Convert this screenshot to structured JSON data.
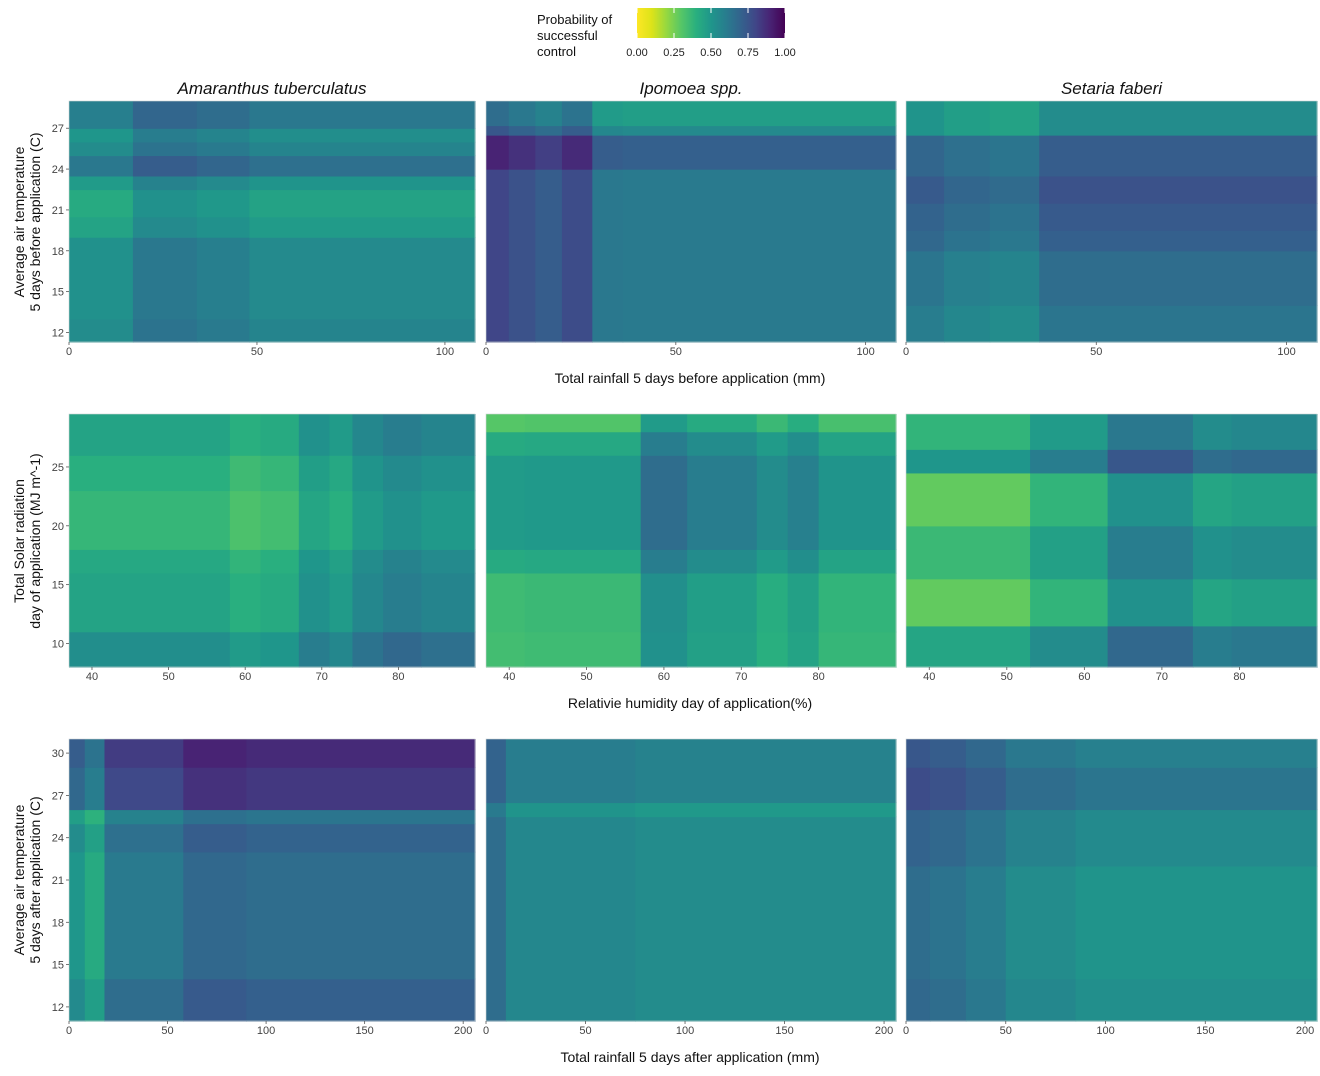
{
  "legend": {
    "title_lines": [
      "Probability of",
      "successful",
      "control"
    ],
    "ticks": [
      "0.00",
      "0.25",
      "0.50",
      "0.75",
      "1.00"
    ],
    "tick_values": [
      0,
      0.25,
      0.5,
      0.75,
      1.0
    ]
  },
  "columns": [
    "Amaranthus tuberculatus",
    "Ipomoea spp.",
    "Setaria faberi"
  ],
  "rows": [
    {
      "xlabel": "Total rainfall 5 days before application (mm)",
      "ylabel_lines": [
        "Average air temperature",
        "5 days before application (C)"
      ],
      "x_ticks": [
        0,
        50,
        100
      ],
      "y_ticks": [
        12,
        15,
        18,
        21,
        24,
        27
      ],
      "xlim": [
        0,
        108
      ],
      "ylim": [
        11.3,
        29.0
      ]
    },
    {
      "xlabel": "Relativie humidity day of application(%)",
      "ylabel_lines": [
        "Total Solar radiation",
        "day of application (MJ m^-1)"
      ],
      "x_ticks": [
        40,
        50,
        60,
        70,
        80
      ],
      "y_ticks": [
        10,
        15,
        20,
        25
      ],
      "xlim": [
        37,
        90
      ],
      "ylim": [
        8,
        29.5
      ]
    },
    {
      "xlabel": "Total rainfall 5 days after application (mm)",
      "ylabel_lines": [
        "Average air temperature",
        "5 days after application (C)"
      ],
      "x_ticks": [
        0,
        50,
        100,
        150,
        200
      ],
      "y_ticks": [
        12,
        15,
        18,
        21,
        24,
        27,
        30
      ],
      "xlim": [
        0,
        206
      ],
      "ylim": [
        11,
        31
      ]
    }
  ],
  "chart_data": {
    "type": "heatmap",
    "value_name": "Probability of successful control",
    "value_range": [
      0,
      1
    ],
    "panels": [
      {
        "row": 0,
        "col": 0,
        "x_breaks": [
          0,
          17,
          34,
          48,
          108
        ],
        "x_effect": [
          -0.04,
          0.06,
          0.03,
          -0.01
        ],
        "y_breaks": [
          11.3,
          13,
          19,
          20.5,
          22.5,
          23.5,
          25,
          26,
          27,
          29
        ],
        "y_effect": [
          0.02,
          0.0,
          -0.07,
          -0.1,
          -0.04,
          0.1,
          0.02,
          -0.02,
          0.07
        ],
        "base": 0.56
      },
      {
        "row": 0,
        "col": 1,
        "x_breaks": [
          0,
          6,
          13,
          20,
          28,
          36,
          108
        ],
        "x_effect": [
          0.14,
          0.1,
          0.06,
          0.12,
          -0.04,
          -0.05
        ],
        "y_breaks": [
          11.3,
          24,
          26.5,
          27.2,
          29
        ],
        "y_effect": [
          0.0,
          0.1,
          -0.06,
          -0.14
        ],
        "base": 0.66
      },
      {
        "row": 0,
        "col": 2,
        "x_breaks": [
          0,
          10,
          22,
          35,
          108
        ],
        "x_effect": [
          -0.01,
          -0.05,
          -0.07,
          0.02
        ],
        "y_breaks": [
          11.3,
          14,
          18,
          19.5,
          21.5,
          23.5,
          26.5,
          29
        ],
        "y_effect": [
          -0.05,
          -0.02,
          0.03,
          0.05,
          0.08,
          0.04,
          -0.14
        ],
        "base": 0.66
      },
      {
        "row": 1,
        "col": 0,
        "x_breaks": [
          37,
          58,
          62,
          67,
          71,
          74,
          78,
          83,
          90
        ],
        "x_effect": [
          -0.05,
          -0.1,
          -0.08,
          0.02,
          -0.02,
          0.06,
          0.1,
          0.07
        ],
        "y_breaks": [
          8,
          11,
          16,
          18,
          23,
          26,
          29.5
        ],
        "y_effect": [
          0.08,
          0.0,
          -0.02,
          -0.08,
          -0.05,
          0.0
        ],
        "base": 0.5
      },
      {
        "row": 1,
        "col": 1,
        "x_breaks": [
          37,
          42,
          57,
          63,
          72,
          76,
          80,
          90
        ],
        "x_effect": [
          -0.08,
          -0.07,
          0.1,
          0.04,
          -0.02,
          0.03,
          -0.05
        ],
        "y_breaks": [
          8,
          11,
          16,
          18,
          26,
          28,
          29.5
        ],
        "y_effect": [
          -0.06,
          -0.05,
          0.02,
          0.08,
          0.02,
          -0.1
        ],
        "base": 0.48
      },
      {
        "row": 1,
        "col": 2,
        "x_breaks": [
          37,
          53,
          63,
          74,
          79,
          90
        ],
        "x_effect": [
          -0.12,
          -0.02,
          0.12,
          0.04,
          0.06
        ],
        "y_breaks": [
          8,
          11.5,
          15.5,
          20,
          24.5,
          26.5,
          29.5
        ],
        "y_effect": [
          0.06,
          -0.1,
          -0.02,
          -0.1,
          0.12,
          0.0
        ],
        "base": 0.5
      },
      {
        "row": 2,
        "col": 0,
        "x_breaks": [
          0,
          8,
          18,
          58,
          90,
          206
        ],
        "x_effect": [
          -0.08,
          -0.16,
          0.03,
          0.1,
          0.08
        ],
        "y_breaks": [
          11,
          14,
          23,
          25,
          26,
          29,
          31
        ],
        "y_effect": [
          0.05,
          0.0,
          0.04,
          -0.03,
          0.18,
          0.22
        ],
        "base": 0.58
      },
      {
        "row": 2,
        "col": 1,
        "x_breaks": [
          0,
          10,
          75,
          206
        ],
        "x_effect": [
          0.1,
          0.0,
          -0.02
        ],
        "y_breaks": [
          11,
          25.5,
          26.5,
          31
        ],
        "y_effect": [
          0.0,
          -0.05,
          0.04
        ],
        "base": 0.56
      },
      {
        "row": 2,
        "col": 2,
        "x_breaks": [
          0,
          12,
          30,
          50,
          85,
          206
        ],
        "x_effect": [
          0.1,
          0.08,
          0.04,
          -0.02,
          -0.05
        ],
        "y_breaks": [
          11,
          14,
          22,
          26,
          29,
          31
        ],
        "y_effect": [
          0.0,
          -0.02,
          0.02,
          0.1,
          0.06
        ],
        "base": 0.58
      }
    ]
  }
}
